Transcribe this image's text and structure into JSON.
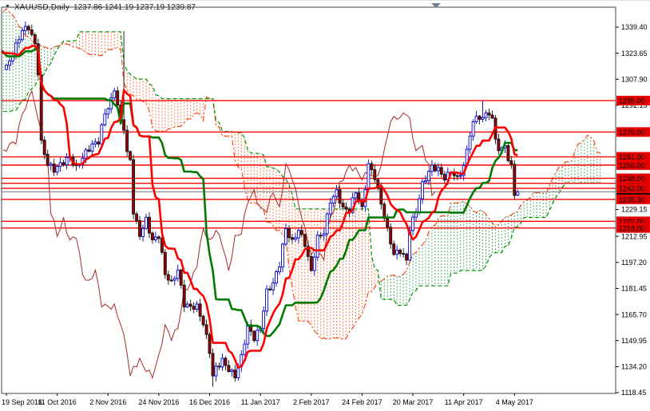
{
  "window": {
    "collapse_icon": "▼",
    "symbol_label": "XAUUSD,Daily",
    "ohlc_label": "1237.86 1241.19 1237.19 1239.87"
  },
  "axes": {
    "price_labels": [
      1339.4,
      1323.65,
      1307.9,
      1292.15,
      1229.15,
      1212.95,
      1197.2,
      1181.45,
      1165.7,
      1149.95,
      1134.2,
      1118.45
    ],
    "date_labels": [
      "19 Sep 2016",
      "11 Oct 2016",
      "2 Nov 2016",
      "24 Nov 2016",
      "16 Dec 2016",
      "11 Jan 2017",
      "2 Feb 2017",
      "24 Feb 2017",
      "20 Mar 2017",
      "11 Apr 2017",
      "4 May 2017"
    ]
  },
  "chart_data": {
    "type": "candlestick",
    "symbol": "XAUUSD",
    "timeframe": "Daily",
    "indicator": "Ichimoku Kinko Hyo",
    "ichimoku_params": {
      "tenkan": 9,
      "kijun": 26,
      "senkou_b": 52,
      "shift": 26
    },
    "last_candle": {
      "open": 1237.86,
      "high": 1241.19,
      "low": 1237.19,
      "close": 1239.87
    },
    "visible_price_range": [
      1118.45,
      1339.4
    ],
    "bars_visible": 162,
    "bars_per_date_label": 16,
    "horizontal_levels": [
      {
        "price": 1295.0,
        "label": "1295.00",
        "badge_layer": "front"
      },
      {
        "price": 1276.0,
        "label": "1276.00",
        "badge_layer": "front"
      },
      {
        "price": 1261.0,
        "label": "1261.00",
        "badge_layer": "front"
      },
      {
        "price": 1256.0,
        "label": "1256.00",
        "badge_layer": "back"
      },
      {
        "price": 1248.0,
        "label": "1248.00",
        "badge_layer": "front"
      },
      {
        "price": 1245.0,
        "label": "1245.00",
        "badge_layer": "back"
      },
      {
        "price": 1242.0,
        "label": "1242.00",
        "badge_layer": "front"
      },
      {
        "price": 1235.3,
        "label": "1235.30",
        "badge_layer": "front"
      },
      {
        "price": 1222.0,
        "label": "1222.00",
        "badge_layer": "front"
      },
      {
        "price": 1218.0,
        "label": "1218.00",
        "badge_layer": "front"
      }
    ],
    "current_price_line": {
      "price": 1239.87,
      "label": "1239.87"
    },
    "close_path_note": "index 0 = first visible candle (19 Sep 2016); negative indices = off-screen warmup bars used only to seed the Ichimoku lines visible on screen",
    "close_path_keyframes": [
      [
        -104,
        1232
      ],
      [
        -98,
        1248
      ],
      [
        -92,
        1262
      ],
      [
        -86,
        1272
      ],
      [
        -80,
        1252
      ],
      [
        -76,
        1212
      ],
      [
        -72,
        1230
      ],
      [
        -66,
        1258
      ],
      [
        -62,
        1288
      ],
      [
        -59,
        1310
      ],
      [
        -56,
        1298
      ],
      [
        -52,
        1340
      ],
      [
        -48,
        1362
      ],
      [
        -45,
        1352
      ],
      [
        -42,
        1338
      ],
      [
        -38,
        1352
      ],
      [
        -34,
        1364
      ],
      [
        -30,
        1342
      ],
      [
        -26,
        1338
      ],
      [
        -22,
        1324
      ],
      [
        -18,
        1310
      ],
      [
        -14,
        1320
      ],
      [
        -10,
        1328
      ],
      [
        -6,
        1334
      ],
      [
        -3,
        1322
      ],
      [
        -1,
        1316
      ],
      [
        0,
        1315
      ],
      [
        2,
        1322
      ],
      [
        5,
        1337
      ],
      [
        7,
        1340
      ],
      [
        9,
        1330
      ],
      [
        10,
        1313
      ],
      [
        11,
        1270
      ],
      [
        13,
        1256
      ],
      [
        15,
        1252
      ],
      [
        18,
        1258
      ],
      [
        20,
        1262
      ],
      [
        22,
        1255
      ],
      [
        25,
        1263
      ],
      [
        27,
        1267
      ],
      [
        29,
        1270
      ],
      [
        31,
        1288
      ],
      [
        33,
        1296
      ],
      [
        34,
        1303
      ],
      [
        36,
        1282
      ],
      [
        37,
        1278
      ],
      [
        38,
        1262
      ],
      [
        39,
        1258
      ],
      [
        40,
        1227
      ],
      [
        42,
        1214
      ],
      [
        44,
        1224
      ],
      [
        46,
        1211
      ],
      [
        48,
        1213
      ],
      [
        50,
        1189
      ],
      [
        52,
        1184
      ],
      [
        54,
        1193
      ],
      [
        56,
        1173
      ],
      [
        58,
        1171
      ],
      [
        60,
        1170
      ],
      [
        62,
        1159
      ],
      [
        64,
        1143
      ],
      [
        65,
        1128
      ],
      [
        66,
        1134
      ],
      [
        68,
        1139
      ],
      [
        70,
        1133
      ],
      [
        72,
        1128
      ],
      [
        74,
        1139
      ],
      [
        76,
        1158
      ],
      [
        78,
        1152
      ],
      [
        80,
        1159
      ],
      [
        82,
        1180
      ],
      [
        84,
        1184
      ],
      [
        86,
        1195
      ],
      [
        88,
        1217
      ],
      [
        90,
        1210
      ],
      [
        92,
        1218
      ],
      [
        94,
        1209
      ],
      [
        96,
        1191
      ],
      [
        98,
        1211
      ],
      [
        100,
        1215
      ],
      [
        102,
        1235
      ],
      [
        104,
        1241
      ],
      [
        106,
        1230
      ],
      [
        108,
        1228
      ],
      [
        110,
        1239
      ],
      [
        112,
        1229
      ],
      [
        114,
        1257
      ],
      [
        116,
        1250
      ],
      [
        118,
        1233
      ],
      [
        120,
        1216
      ],
      [
        122,
        1201
      ],
      [
        124,
        1204
      ],
      [
        126,
        1199
      ],
      [
        127,
        1219
      ],
      [
        129,
        1229
      ],
      [
        131,
        1244
      ],
      [
        134,
        1254
      ],
      [
        136,
        1253
      ],
      [
        138,
        1249
      ],
      [
        140,
        1253
      ],
      [
        142,
        1248
      ],
      [
        144,
        1254
      ],
      [
        146,
        1274
      ],
      [
        148,
        1286
      ],
      [
        150,
        1284
      ],
      [
        151,
        1290
      ],
      [
        153,
        1284
      ],
      [
        155,
        1263
      ],
      [
        157,
        1268
      ],
      [
        158,
        1256
      ],
      [
        159,
        1257
      ],
      [
        160,
        1238
      ],
      [
        161,
        1240
      ]
    ],
    "wick_overrides": [
      {
        "i": 37,
        "high": 1337.0
      },
      {
        "i": 65,
        "low": 1122.0
      },
      {
        "i": 150,
        "high": 1295.0
      }
    ],
    "colors": {
      "bull": "#0000CC",
      "bear_fill": "#990000",
      "bear_stroke": "#111111",
      "tenkan": "#FF0000",
      "kijun": "#007A00",
      "chikou": "#A52A2A",
      "senkou_a": "#FF3300",
      "senkou_b": "#009900",
      "cloud_bull": "#3BA05E",
      "cloud_bear": "#FF7038",
      "level": "#FF0000",
      "badge_bg": "#E60000",
      "badge_text": "#FFFFFF",
      "bid_badge_bg": "#101010",
      "current_line": "#808080",
      "axis_text": "#000000",
      "frame": "#444444"
    }
  }
}
